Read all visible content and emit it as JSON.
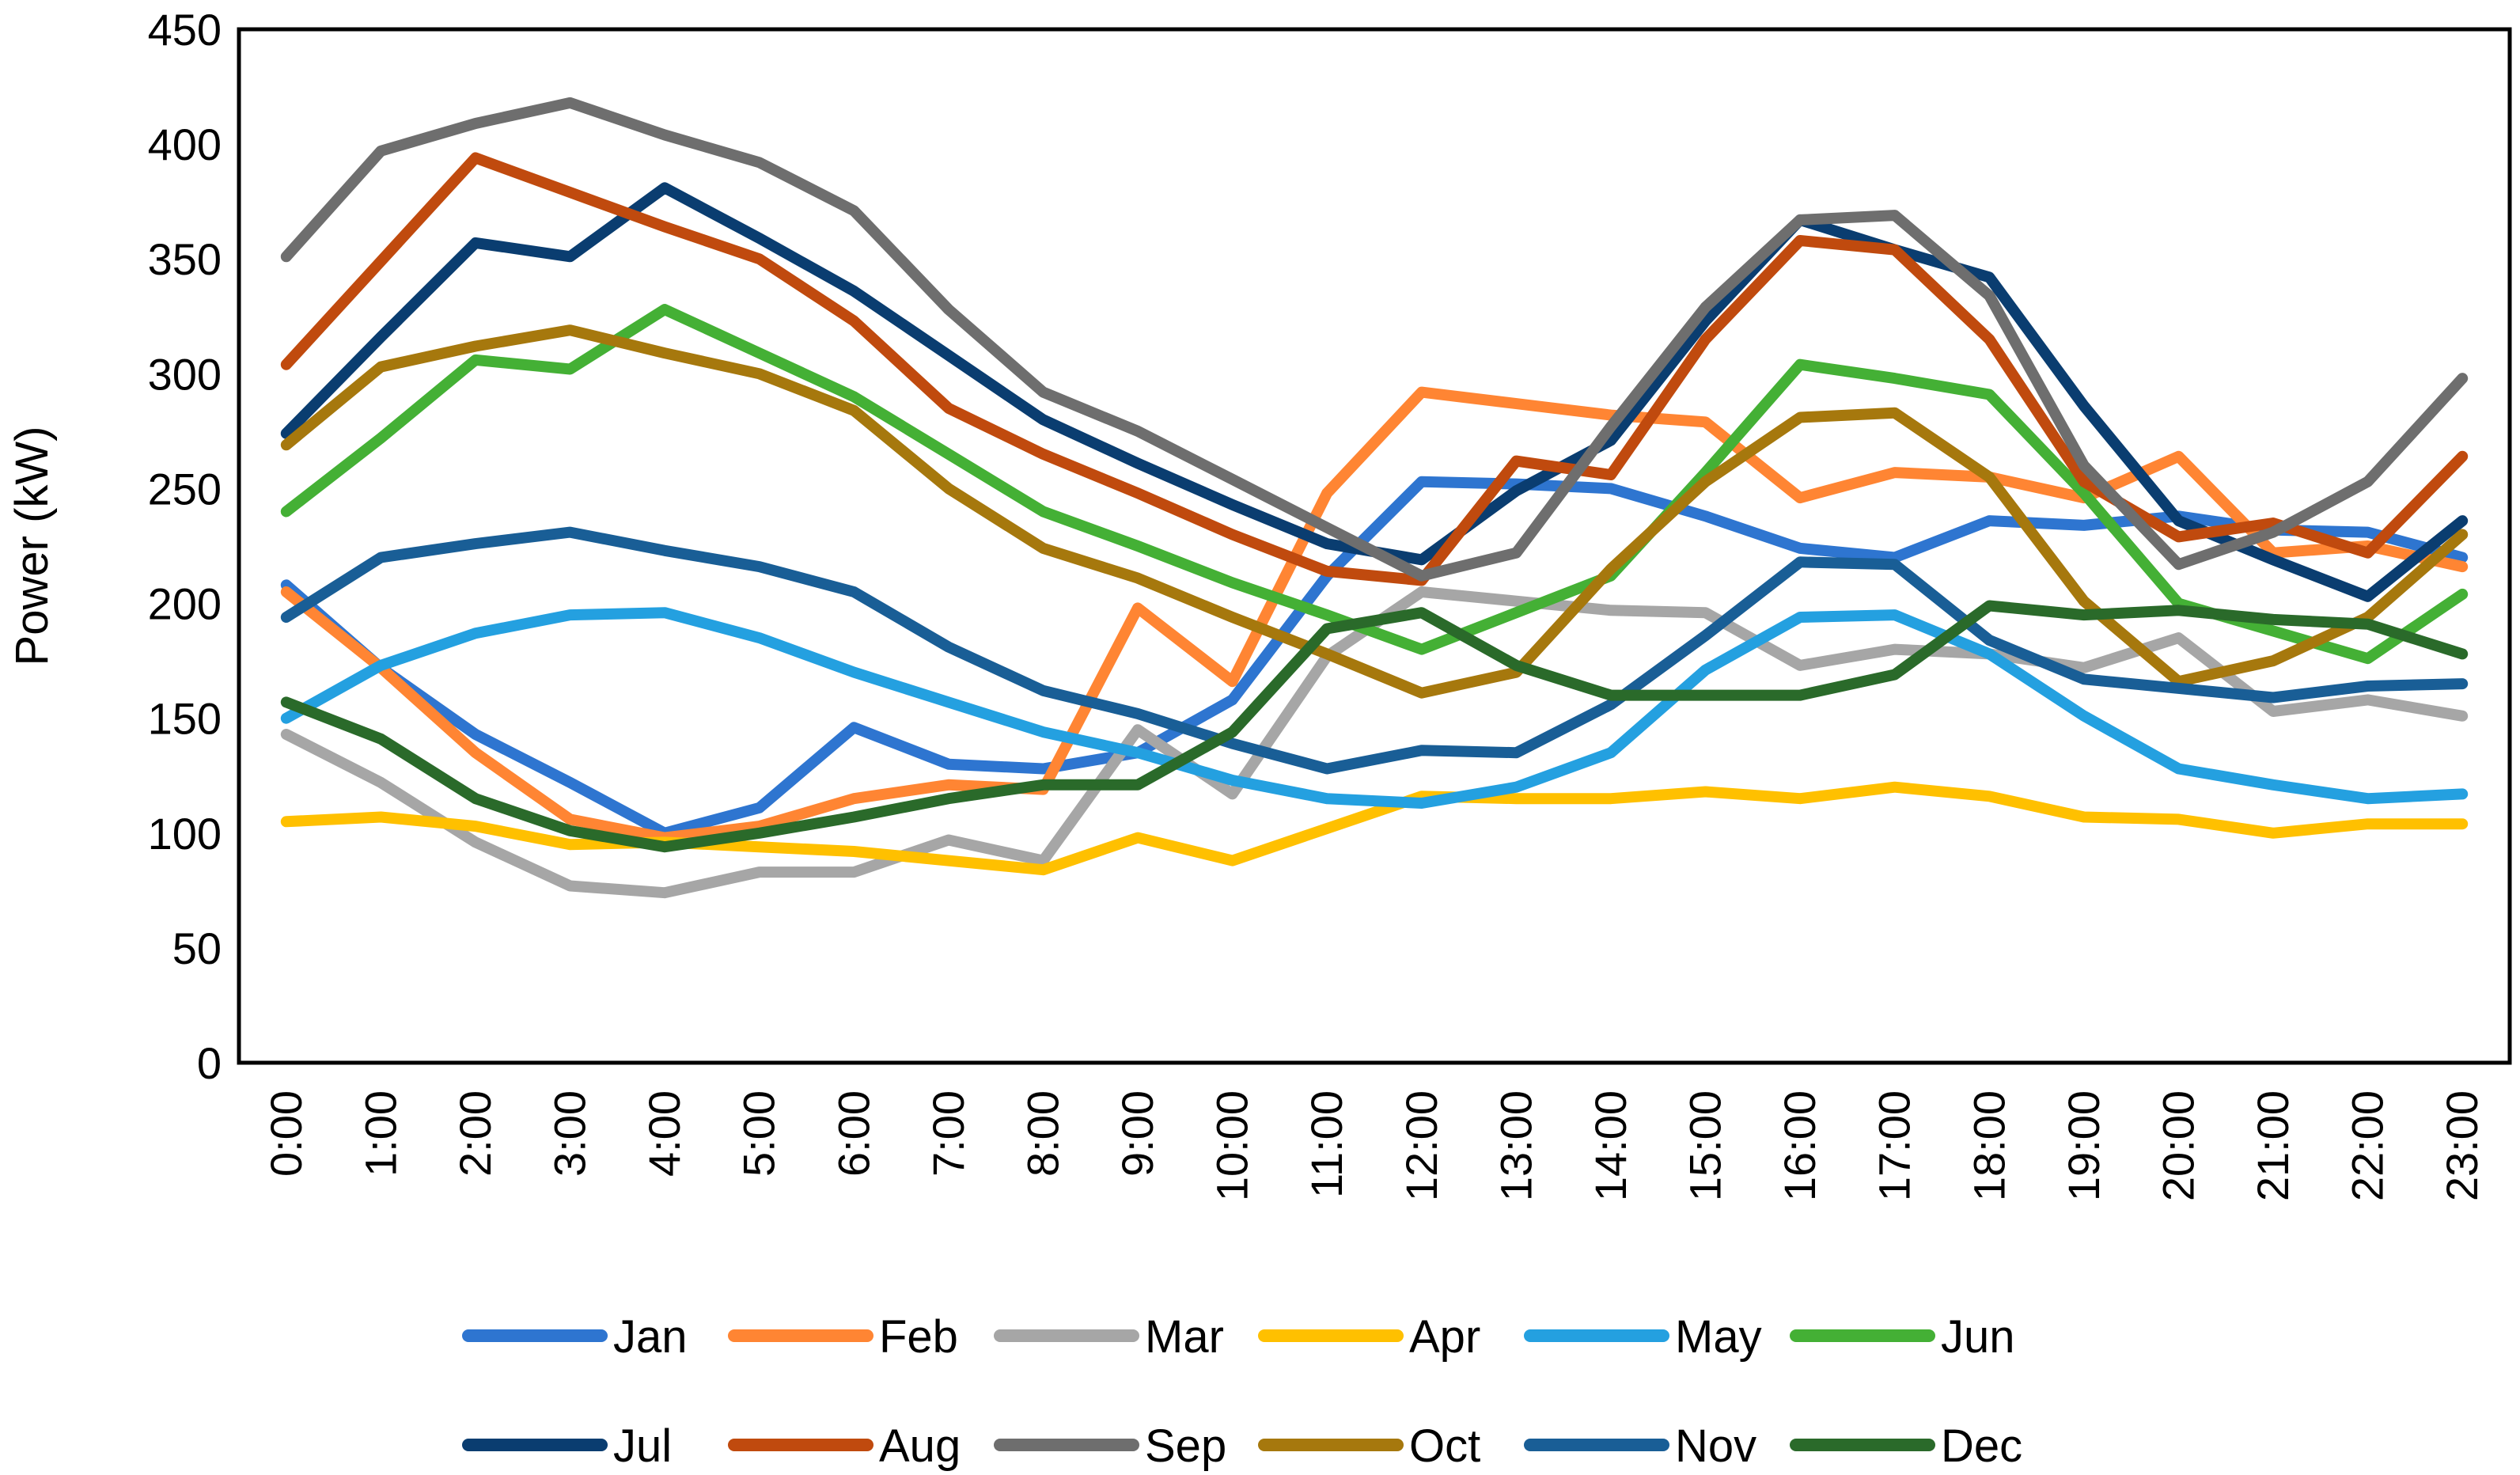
{
  "chart_data": {
    "type": "line",
    "title": "",
    "xlabel": "",
    "ylabel": "Power (kW)",
    "ylim": [
      0,
      450
    ],
    "yticks": [
      0,
      50,
      100,
      150,
      200,
      250,
      300,
      350,
      400,
      450
    ],
    "grid": false,
    "legend_position": "bottom",
    "categories": [
      "0:00",
      "1:00",
      "2:00",
      "3:00",
      "4:00",
      "5:00",
      "6:00",
      "7:00",
      "8:00",
      "9:00",
      "10:00",
      "11:00",
      "12:00",
      "13:00",
      "14:00",
      "15:00",
      "16:00",
      "17:00",
      "18:00",
      "19:00",
      "20:00",
      "21:00",
      "22:00",
      "23:00"
    ],
    "series": [
      {
        "name": "Jan",
        "color": "#2E75D0",
        "values": [
          208,
          172,
          143,
          122,
          100,
          111,
          146,
          130,
          128,
          135,
          158,
          212,
          253,
          252,
          250,
          238,
          224,
          220,
          236,
          234,
          238,
          232,
          231,
          220
        ]
      },
      {
        "name": "Feb",
        "color": "#FF8533",
        "values": [
          205,
          172,
          135,
          106,
          98,
          103,
          115,
          121,
          119,
          198,
          166,
          248,
          292,
          287,
          282,
          279,
          246,
          257,
          255,
          246,
          264,
          222,
          225,
          216
        ]
      },
      {
        "name": "Mar",
        "color": "#A6A6A6",
        "values": [
          143,
          122,
          96,
          77,
          74,
          83,
          83,
          97,
          88,
          145,
          117,
          177,
          205,
          201,
          197,
          196,
          173,
          180,
          178,
          172,
          185,
          153,
          158,
          151
        ]
      },
      {
        "name": "Apr",
        "color": "#FFC000",
        "values": [
          105,
          107,
          103,
          95,
          96,
          94,
          92,
          88,
          84,
          98,
          88,
          102,
          116,
          115,
          115,
          118,
          115,
          120,
          116,
          107,
          106,
          100,
          104,
          104
        ]
      },
      {
        "name": "May",
        "color": "#24A0E0",
        "values": [
          150,
          173,
          187,
          195,
          196,
          185,
          170,
          157,
          144,
          135,
          123,
          115,
          113,
          120,
          135,
          171,
          194,
          195,
          178,
          151,
          128,
          121,
          115,
          117
        ]
      },
      {
        "name": "Jun",
        "color": "#44B035",
        "values": [
          240,
          272,
          306,
          302,
          328,
          309,
          290,
          265,
          240,
          225,
          209,
          195,
          180,
          196,
          212,
          257,
          304,
          298,
          291,
          248,
          200,
          188,
          176,
          204
        ]
      },
      {
        "name": "Jul",
        "color": "#0A3D70",
        "values": [
          274,
          316,
          357,
          351,
          381,
          359,
          336,
          308,
          280,
          261,
          243,
          226,
          219,
          249,
          271,
          323,
          367,
          354,
          342,
          286,
          236,
          219,
          203,
          236
        ]
      },
      {
        "name": "Aug",
        "color": "#C04A0E",
        "values": [
          304,
          349,
          394,
          379,
          364,
          350,
          323,
          285,
          265,
          248,
          230,
          214,
          210,
          262,
          256,
          315,
          358,
          354,
          315,
          253,
          229,
          235,
          222,
          264
        ]
      },
      {
        "name": "Sep",
        "color": "#6E6E6E",
        "values": [
          351,
          397,
          409,
          418,
          404,
          392,
          371,
          328,
          292,
          275,
          254,
          233,
          212,
          222,
          277,
          329,
          367,
          369,
          334,
          260,
          217,
          231,
          253,
          298
        ]
      },
      {
        "name": "Oct",
        "color": "#A6780D",
        "values": [
          269,
          303,
          312,
          319,
          309,
          300,
          284,
          250,
          224,
          211,
          194,
          178,
          161,
          170,
          215,
          253,
          281,
          283,
          255,
          201,
          166,
          175,
          194,
          230
        ]
      },
      {
        "name": "Nov",
        "color": "#195E96",
        "values": [
          194,
          220,
          226,
          231,
          223,
          216,
          205,
          181,
          162,
          152,
          139,
          128,
          136,
          135,
          156,
          186,
          218,
          217,
          184,
          167,
          163,
          159,
          164,
          165
        ]
      },
      {
        "name": "Dec",
        "color": "#2A6A2A",
        "values": [
          157,
          141,
          115,
          101,
          94,
          100,
          107,
          115,
          121,
          121,
          144,
          189,
          196,
          173,
          160,
          160,
          160,
          169,
          199,
          195,
          197,
          193,
          191,
          178
        ]
      }
    ]
  }
}
